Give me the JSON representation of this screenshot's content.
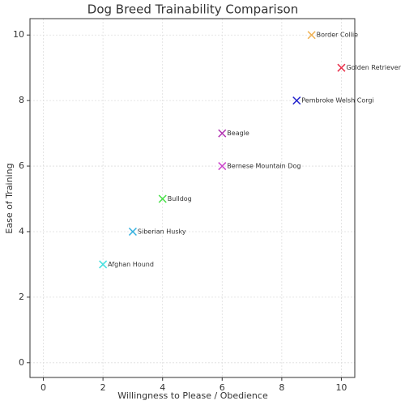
{
  "chart_data": {
    "type": "scatter",
    "title": "Dog Breed Trainability Comparison",
    "x_label": "Willingness to Please / Obedience",
    "y_label": "Ease of Training",
    "labels": [
      "Border Collie",
      "Golden Retriever",
      "Pembroke Welsh Corgi",
      "Beagle",
      "Bernese Mountain Dog",
      "Bulldog",
      "Siberian Husky",
      "Afghan Hound"
    ],
    "x": [
      9,
      10,
      8.5,
      6,
      6,
      4,
      3,
      2
    ],
    "values": [
      10,
      9,
      8,
      7,
      6,
      5,
      4,
      3
    ],
    "colors": [
      "#f0b050",
      "#e8304a",
      "#2222cc",
      "#b030b0",
      "#cc44cc",
      "#44e044",
      "#30b0e0",
      "#44e0e0"
    ],
    "xlim": [
      -0.45,
      10.45
    ],
    "ylim": [
      -0.45,
      10.5
    ],
    "xticks": [
      0,
      2,
      4,
      6,
      8,
      10
    ],
    "yticks": [
      0,
      2,
      4,
      6,
      8,
      10
    ],
    "grid": true
  }
}
